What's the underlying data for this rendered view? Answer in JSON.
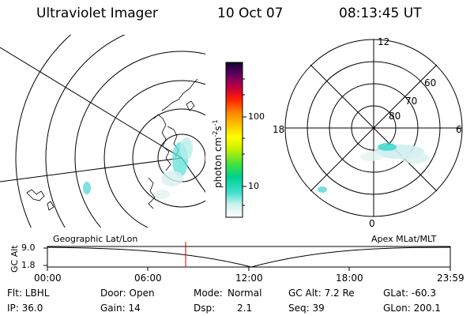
{
  "header": {
    "title": "Ultraviolet Imager",
    "date": "10 Oct 07",
    "time": "08:13:45 UT"
  },
  "colorbar": {
    "label": "photon cm",
    "label_exp1": "-2",
    "label_s": "s",
    "label_exp2": "-1",
    "ticks": [
      "100",
      "10"
    ],
    "scale": "log"
  },
  "polar_plot": {
    "hour_labels": {
      "top": "12",
      "left": "18",
      "right": "6",
      "bottom": "0"
    },
    "lat_labels": [
      "60",
      "70",
      "80"
    ]
  },
  "timeline": {
    "left_label": "Geographic Lat/Lon",
    "right_label": "Apex MLat/MLT",
    "axis_label": "GC Alt",
    "y_ticks": [
      "9.0",
      "1.8"
    ],
    "x_ticks": [
      "00:00",
      "06:00",
      "12:00",
      "18:00",
      "23:59"
    ],
    "marker_color": "#cc0000"
  },
  "footer": {
    "row1": {
      "flt": "Flt: LBHL",
      "door": "Door: Open",
      "mode_label": "Mode:",
      "mode_value": "Normal",
      "gc_alt": "GC Alt: 7.2 Re",
      "glat": "GLat: -60.3"
    },
    "row2": {
      "ip": "IP: 36.0",
      "gain": "Gain: 14",
      "dsp_label": "Dsp:",
      "dsp_value": "2.1",
      "seq": "Seq: 39",
      "glon": "GLon: 200.1"
    }
  }
}
